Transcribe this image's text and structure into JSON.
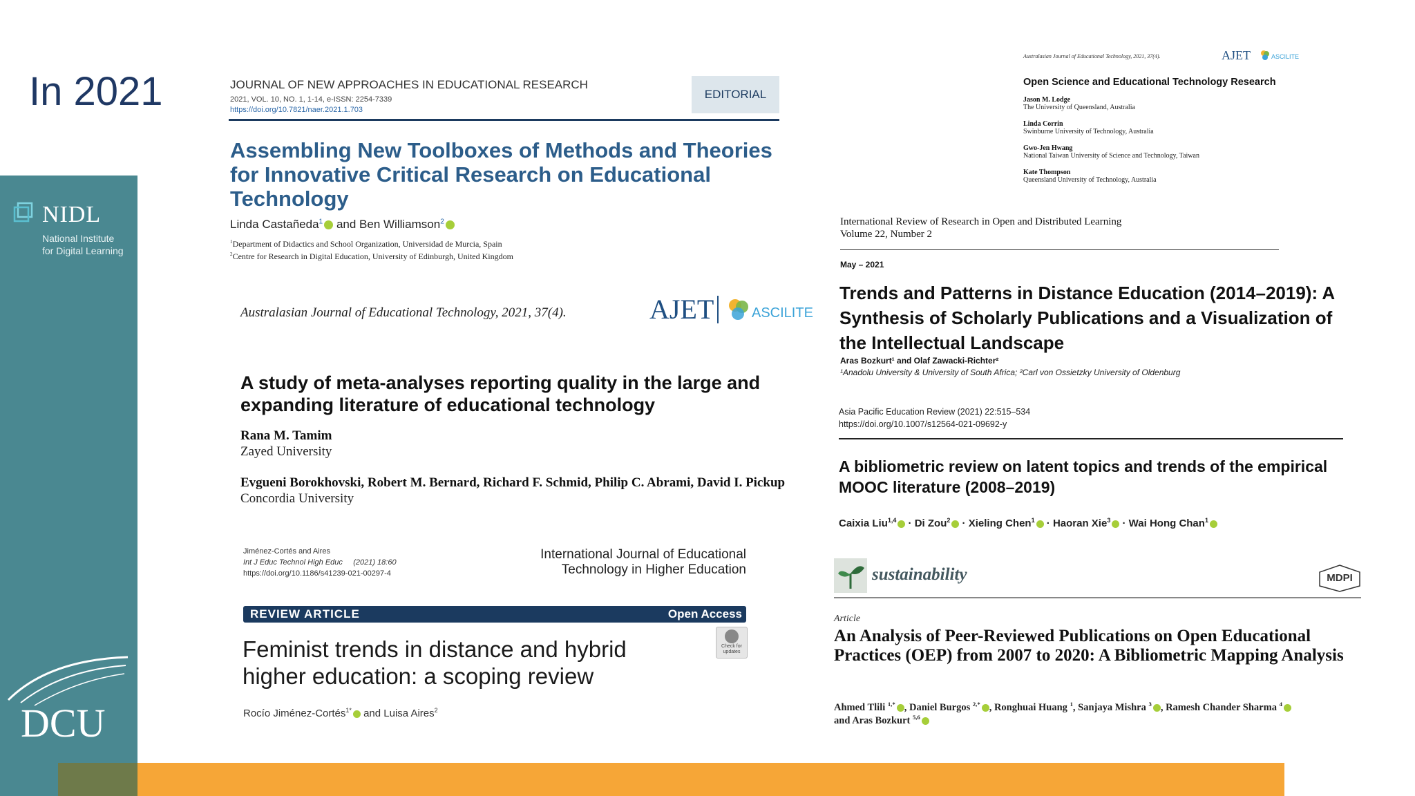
{
  "slide": {
    "title": "In 2021",
    "colors": {
      "title": "#1f3864",
      "sidebar": "#4a8891",
      "orange": "#f6a637",
      "olive": "#6e7a4a",
      "navy": "#1b3a5f",
      "link": "#2a67a8"
    }
  },
  "sidebar": {
    "nidl_name": "NIDL",
    "nidl_line1": "National Institute",
    "nidl_line2": "for Digital Learning",
    "dcu": "DCU",
    "logo_icon": "nidl-logo-icon"
  },
  "p1": {
    "journal": "JOURNAL OF NEW APPROACHES IN EDUCATIONAL RESEARCH",
    "meta": "2021, VOL. 10, NO. 1, 1-14, e-ISSN: 2254-7339",
    "doi": "https://doi.org/10.7821/naer.2021.1.703",
    "badge": "EDITORIAL",
    "title": "Assembling New Toolboxes of Methods and Theories for Innovative Critical Research on Educational Technology",
    "author1": "Linda Castañeda",
    "sup1": "1",
    "and": "and Ben Williamson",
    "sup2": "2",
    "affil1_sup": "1",
    "affil1": "Department of Didactics and School Organization, Universidad de Murcia, Spain",
    "affil2_sup": "2",
    "affil2": "Centre for Research in Digital Education, University of Edinburgh, United Kingdom"
  },
  "p2": {
    "journal": "Australasian Journal of Educational Technology, 2021, 37(4).",
    "logo": "AJET",
    "ascilite": "ASCILITE",
    "title": "A study of meta-analyses reporting quality in the large and expanding literature of educational technology",
    "author1": "Rana M. Tamim",
    "affil1": "Zayed University",
    "authors2": "Evgueni Borokhovski, Robert M. Bernard, Richard F. Schmid, Philip C. Abrami, David I. Pickup",
    "affil2": "Concordia University"
  },
  "p3": {
    "cite1": "Jiménez-Cortés and Aires",
    "cite2": "Int J Educ Technol High Educ",
    "cite2b": "(2021) 18:60",
    "cite3": "https://doi.org/10.1186/s41239-021-00297-4",
    "journal1": "International Journal of Educational",
    "journal2": "Technology in Higher Education",
    "bar_left": "REVIEW ARTICLE",
    "bar_right": "Open Access",
    "check1": "Check for",
    "check2": "updates",
    "title": "Feminist trends in distance and hybrid higher education: a scoping review",
    "authors": "Rocío Jiménez-Cortés",
    "sup1": "1*",
    "and": "and Luisa Aires",
    "sup2": "2"
  },
  "p4": {
    "journal": "Australasian Journal of Educational Technology, 2021, 37(4).",
    "logo": "AJET",
    "ascilite": "ASCILITE",
    "title": "Open Science and Educational Technology Research",
    "authors": [
      {
        "name": "Jason M. Lodge",
        "affil": "The University of Queensland, Australia"
      },
      {
        "name": "Linda Corrin",
        "affil": "Swinburne University of Technology, Australia"
      },
      {
        "name": "Gwo-Jen Hwang",
        "affil": "National Taiwan University of Science and Technology, Taiwan"
      },
      {
        "name": "Kate Thompson",
        "affil": "Queensland University of Technology, Australia"
      }
    ]
  },
  "p5": {
    "journal": "International Review of Research in Open and Distributed Learning",
    "volume": "Volume 22, Number 2",
    "date": "May – 2021",
    "title": "Trends and Patterns in Distance Education (2014–2019): A Synthesis of Scholarly Publications and a Visualization of the Intellectual Landscape",
    "authors": "Aras Bozkurt¹ and Olaf Zawacki-Richter²",
    "affil": "¹Anadolu University & University of South Africa; ²Carl von Ossietzky University of Oldenburg"
  },
  "p6": {
    "journal": "Asia Pacific Education Review (2021) 22:515–534",
    "doi": "https://doi.org/10.1007/s12564-021-09692-y",
    "title": "A bibliometric review on latent topics and trends of the empirical MOOC literature (2008–2019)",
    "authors": [
      {
        "name": "Caixia Liu",
        "sup": "1,4"
      },
      {
        "name": "Di Zou",
        "sup": "2"
      },
      {
        "name": "Xieling Chen",
        "sup": "1"
      },
      {
        "name": "Haoran Xie",
        "sup": "3"
      },
      {
        "name": "Wai Hong Chan",
        "sup": "1"
      }
    ]
  },
  "p7": {
    "journal": "sustainability",
    "publisher": "MDPI",
    "type": "Article",
    "title": "An Analysis of Peer-Reviewed Publications on Open Educational Practices (OEP) from 2007 to 2020: A Bibliometric Mapping Analysis",
    "authors_line1": [
      {
        "name": "Ahmed Tlili",
        "sup": "1,*"
      },
      {
        "name": "Daniel Burgos",
        "sup": "2,*"
      },
      {
        "name": "Ronghuai Huang",
        "sup": "1"
      },
      {
        "name": "Sanjaya Mishra",
        "sup": "3"
      },
      {
        "name": "Ramesh Chander Sharma",
        "sup": "4"
      }
    ],
    "authors_line2_prefix": "and Aras Bozkurt",
    "authors_line2_sup": "5,6"
  }
}
